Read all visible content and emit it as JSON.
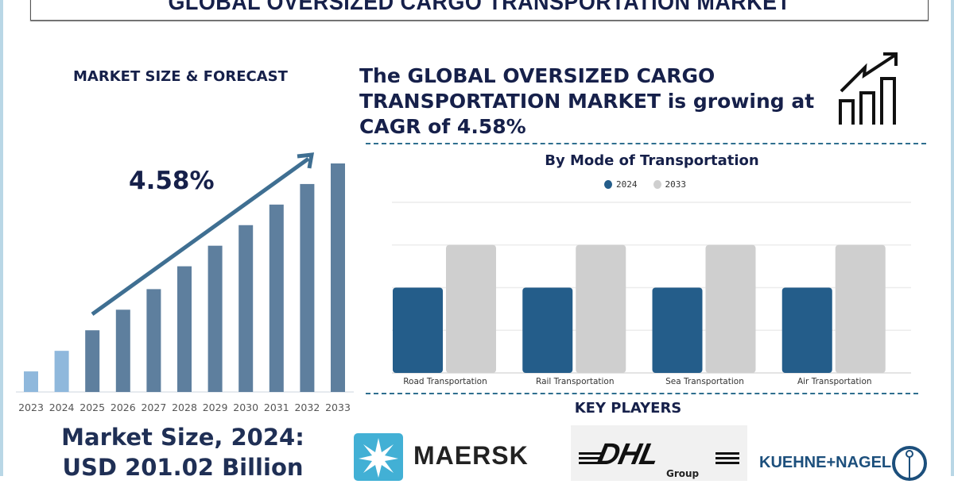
{
  "title": "GLOBAL OVERSIZED CARGO TRANSPORTATION MARKET",
  "left_panel": {
    "heading": "MARKET SIZE & FORECAST",
    "cagr_label": "4.58%",
    "market_size_line1": "Market Size, 2024:",
    "market_size_line2": "USD 201.02 Billion"
  },
  "headline": "The GLOBAL OVERSIZED CARGO TRANSPORTATION MARKET is growing at CAGR of 4.58%",
  "icon": "growth-chart-icon",
  "key_players": {
    "title": "KEY PLAYERS",
    "logos": [
      "MAERSK",
      "DHL",
      "Group",
      "KUEHNE+NAGEL"
    ]
  },
  "colors": {
    "title": "#16204a",
    "bar_2024": "#245d8a",
    "bar_2033": "#cfcfcf",
    "forecast_bar": "#5e7f9e",
    "history_bar": "#8fb8dc",
    "arrow": "#3f6f92"
  },
  "chart_data": [
    {
      "type": "bar",
      "title": "",
      "categories": [
        "2023",
        "2024",
        "2025",
        "2026",
        "2027",
        "2028",
        "2029",
        "2030",
        "2031",
        "2032",
        "2033"
      ],
      "values": [
        9,
        18,
        27,
        36,
        45,
        55,
        64,
        73,
        82,
        91,
        100
      ],
      "ylim": [
        0,
        100
      ],
      "grid": false,
      "annotation": "4.58%"
    },
    {
      "type": "bar",
      "title": "By Mode of Transportation",
      "categories": [
        "Road Transportation",
        "Rail Transportation",
        "Sea Transportation",
        "Air Transportation"
      ],
      "series": [
        {
          "name": "2024",
          "values": [
            2,
            2,
            2,
            2
          ]
        },
        {
          "name": "2033",
          "values": [
            3,
            3,
            3,
            3
          ]
        }
      ],
      "ylim": [
        0,
        4
      ],
      "grid": true,
      "legend": "top-center"
    }
  ]
}
